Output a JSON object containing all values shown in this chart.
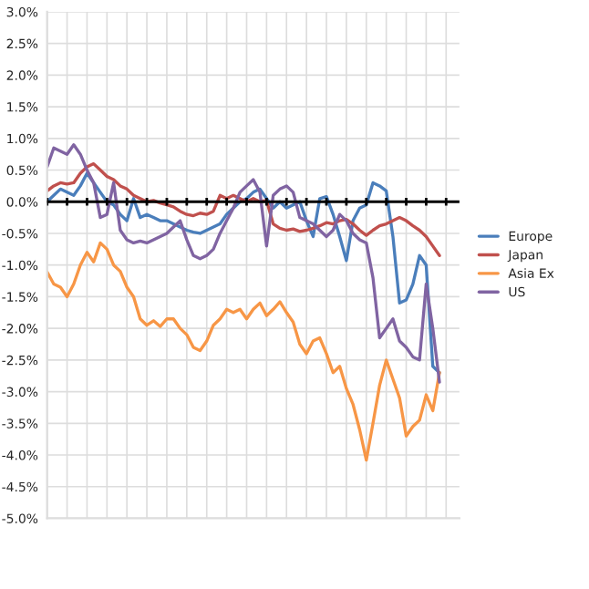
{
  "chart_data": {
    "type": "line",
    "categories": [
      null,
      null,
      null,
      null,
      null,
      null,
      null,
      null,
      null,
      null,
      null,
      null,
      null,
      null,
      null,
      null,
      null,
      null,
      null,
      null,
      null,
      null,
      null,
      null,
      null,
      null,
      null,
      null,
      null,
      null,
      null,
      null,
      null,
      null,
      null,
      null,
      null,
      null,
      null,
      null,
      null,
      null,
      null,
      null,
      null,
      null,
      null,
      null,
      null,
      null,
      null,
      null,
      null,
      null,
      null,
      null,
      null,
      null,
      null,
      null,
      null,
      null,
      null
    ],
    "series": [
      {
        "name": "Europe",
        "color": "#4a7ebb",
        "values": [
          0,
          0.1,
          0.2,
          0.15,
          0.1,
          0.25,
          0.45,
          0.3,
          0.15,
          0,
          -0.05,
          -0.2,
          -0.3,
          0.05,
          -0.25,
          -0.2,
          -0.25,
          -0.3,
          -0.3,
          -0.35,
          -0.4,
          -0.45,
          -0.48,
          -0.5,
          -0.45,
          -0.4,
          -0.35,
          -0.2,
          -0.1,
          0,
          0.05,
          0.15,
          0.2,
          0.05,
          -0.1,
          0,
          -0.1,
          -0.05,
          0,
          -0.3,
          -0.55,
          0.05,
          0.08,
          -0.2,
          -0.55,
          -0.93,
          -0.3,
          -0.1,
          -0.05,
          0.3,
          0.25,
          0.17,
          -0.55,
          -1.6,
          -1.55,
          -1.3,
          -0.85,
          -1.0,
          -2.6,
          -2.7,
          null,
          null,
          null
        ]
      },
      {
        "name": "Japan",
        "color": "#c0504d",
        "values": [
          0.17,
          0.25,
          0.3,
          0.28,
          0.3,
          0.45,
          0.55,
          0.6,
          0.5,
          0.4,
          0.35,
          0.25,
          0.2,
          0.1,
          0.05,
          0,
          0.02,
          -0.02,
          -0.05,
          -0.08,
          -0.15,
          -0.2,
          -0.22,
          -0.18,
          -0.2,
          -0.15,
          0.1,
          0.05,
          0.1,
          0.05,
          0,
          0.05,
          0,
          0.02,
          -0.35,
          -0.42,
          -0.45,
          -0.43,
          -0.47,
          -0.45,
          -0.42,
          -0.38,
          -0.33,
          -0.35,
          -0.3,
          -0.28,
          -0.35,
          -0.45,
          -0.53,
          -0.45,
          -0.38,
          -0.35,
          -0.3,
          -0.25,
          -0.3,
          -0.38,
          -0.45,
          -0.55,
          -0.7,
          -0.85,
          null,
          null,
          null
        ]
      },
      {
        "name": "Asia Ex",
        "color": "#f79646",
        "values": [
          -1.11,
          -1.3,
          -1.35,
          -1.5,
          -1.3,
          -1.0,
          -0.8,
          -0.95,
          -0.65,
          -0.75,
          -1.0,
          -1.1,
          -1.35,
          -1.5,
          -1.85,
          -1.95,
          -1.88,
          -1.97,
          -1.85,
          -1.85,
          -2.0,
          -2.1,
          -2.3,
          -2.35,
          -2.2,
          -1.95,
          -1.85,
          -1.7,
          -1.75,
          -1.7,
          -1.85,
          -1.7,
          -1.6,
          -1.8,
          -1.7,
          -1.58,
          -1.75,
          -1.9,
          -2.25,
          -2.4,
          -2.2,
          -2.15,
          -2.4,
          -2.7,
          -2.6,
          -2.95,
          -3.2,
          -3.6,
          -4.08,
          -3.5,
          -2.9,
          -2.5,
          -2.8,
          -3.1,
          -3.7,
          -3.55,
          -3.45,
          -3.05,
          -3.3,
          -2.7,
          null,
          null,
          null
        ]
      },
      {
        "name": "US",
        "color": "#8064a2",
        "values": [
          0.55,
          0.85,
          0.8,
          0.75,
          0.9,
          0.75,
          0.5,
          0.3,
          -0.25,
          -0.2,
          0.3,
          -0.45,
          -0.6,
          -0.65,
          -0.62,
          -0.65,
          -0.6,
          -0.55,
          -0.5,
          -0.4,
          -0.3,
          -0.6,
          -0.85,
          -0.9,
          -0.85,
          -0.75,
          -0.5,
          -0.3,
          -0.1,
          0.15,
          0.25,
          0.35,
          0.15,
          -0.7,
          0.1,
          0.2,
          0.25,
          0.15,
          -0.25,
          -0.3,
          -0.35,
          -0.45,
          -0.55,
          -0.45,
          -0.2,
          -0.3,
          -0.5,
          -0.6,
          -0.65,
          -1.2,
          -2.15,
          -2.0,
          -1.85,
          -2.2,
          -2.3,
          -2.45,
          -2.5,
          -1.3,
          -2.0,
          -2.85,
          null,
          null,
          null
        ]
      }
    ],
    "ylim": [
      -5,
      3
    ],
    "yticks": [
      {
        "value": -5,
        "label": "-5.0%"
      },
      {
        "value": -4.5,
        "label": "-4.5%"
      },
      {
        "value": -4,
        "label": "-4.0%"
      },
      {
        "value": -3.5,
        "label": "-3.5%"
      },
      {
        "value": -3,
        "label": "-3.0%"
      },
      {
        "value": -2.5,
        "label": "-2.5%"
      },
      {
        "value": -2,
        "label": "-2.0%"
      },
      {
        "value": -1.5,
        "label": "-1.5%"
      },
      {
        "value": -1,
        "label": "-1.0%"
      },
      {
        "value": -0.5,
        "label": "-0.5%"
      },
      {
        "value": 0,
        "label": "0.0%"
      },
      {
        "value": 0.5,
        "label": "0.5%"
      },
      {
        "value": 1,
        "label": "1.0%"
      },
      {
        "value": 1.5,
        "label": "1.5%"
      },
      {
        "value": 2,
        "label": "2.0%"
      },
      {
        "value": 2.5,
        "label": "2.5%"
      },
      {
        "value": 3,
        "label": "3.0%"
      }
    ],
    "ref_lines": [
      {
        "axis": "y",
        "value": 0,
        "color": "#000000"
      }
    ],
    "grid": true,
    "legend": "right",
    "marker": "none",
    "line_style": "solid"
  }
}
